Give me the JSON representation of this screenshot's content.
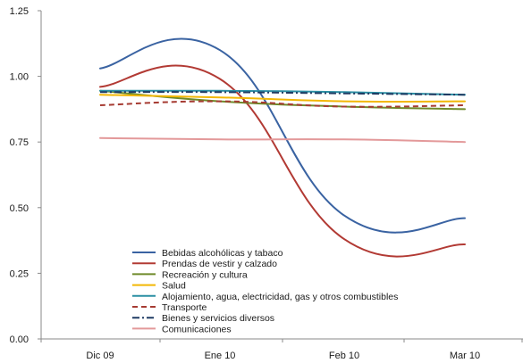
{
  "chart_data": {
    "type": "line",
    "categories": [
      "Dic 09",
      "Ene 10",
      "Feb 10",
      "Mar 10"
    ],
    "ylim": [
      0,
      1.25
    ],
    "yticks": [
      "0.00",
      "0.25",
      "0.50",
      "0.75",
      "1.00",
      "1.25"
    ],
    "grid": false,
    "legend_position": "bottom-left",
    "series": [
      {
        "name": "Bebidas alcohólicas y tabaco",
        "values": [
          1.03,
          1.1,
          0.47,
          0.46
        ],
        "color": "#3a63a2",
        "dash": "solid"
      },
      {
        "name": "Prendas de vestir y calzado",
        "values": [
          0.96,
          0.99,
          0.38,
          0.36
        ],
        "color": "#b23a34",
        "dash": "solid"
      },
      {
        "name": "Recreación y cultura",
        "values": [
          0.945,
          0.905,
          0.885,
          0.875
        ],
        "color": "#6f8a2a",
        "dash": "solid"
      },
      {
        "name": "Salud",
        "values": [
          0.93,
          0.92,
          0.905,
          0.905
        ],
        "color": "#f2b705",
        "dash": "solid"
      },
      {
        "name": "Alojamiento, agua, electricidad, gas y otros combustibles",
        "values": [
          0.945,
          0.945,
          0.94,
          0.93
        ],
        "color": "#2b8fa4",
        "dash": "solid"
      },
      {
        "name": "Transporte",
        "values": [
          0.89,
          0.905,
          0.885,
          0.89
        ],
        "color": "#a63b32",
        "dash": "dash"
      },
      {
        "name": "Bienes y servicios diversos",
        "values": [
          0.94,
          0.94,
          0.935,
          0.93
        ],
        "color": "#1f3b63",
        "dash": "dashdot"
      },
      {
        "name": "Comunicaciones",
        "values": [
          0.765,
          0.76,
          0.76,
          0.75
        ],
        "color": "#e3999a",
        "dash": "solid"
      }
    ]
  }
}
